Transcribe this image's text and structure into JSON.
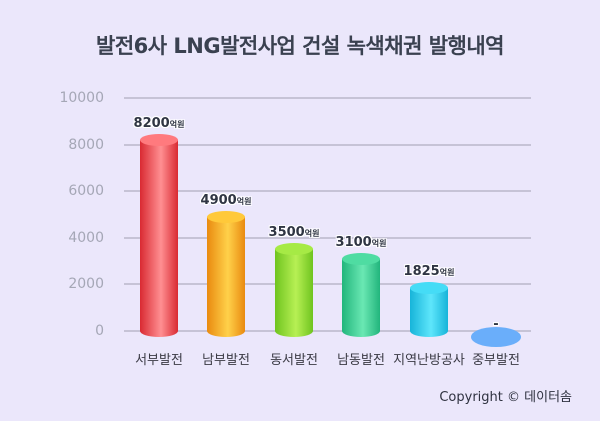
{
  "title": "발전6사 LNG발전사업 건설 녹색채권 발행내역",
  "copyright": "Copyright © 데이터솜",
  "unit_suffix": "억원",
  "y_ticks": [
    "10000",
    "8000",
    "6000",
    "4000",
    "2000",
    "0"
  ],
  "bars": [
    {
      "label": "서부발전",
      "value_text": "8200",
      "unit": "억원",
      "color_dark": "#d92a32",
      "color_light": "#ff8f92",
      "top": "#ff7a7e"
    },
    {
      "label": "남부발전",
      "value_text": "4900",
      "unit": "억원",
      "color_dark": "#e98a0f",
      "color_light": "#ffd14a",
      "top": "#ffc93a"
    },
    {
      "label": "동서발전",
      "value_text": "3500",
      "unit": "억원",
      "color_dark": "#6fc41f",
      "color_light": "#b7f054",
      "top": "#a6ea45"
    },
    {
      "label": "남동발전",
      "value_text": "3100",
      "unit": "억원",
      "color_dark": "#22b57c",
      "color_light": "#6ae8b3",
      "top": "#4fdca2"
    },
    {
      "label": "지역난방공사",
      "value_text": "1825",
      "unit": "억원",
      "color_dark": "#17b4d9",
      "color_light": "#5ee6fb",
      "top": "#45dcf6"
    },
    {
      "label": "중부발전",
      "value_text": "-",
      "unit": "",
      "color_dark": "#5aa4f5",
      "color_light": "#7ab8fb",
      "top": "#6aaefa"
    }
  ],
  "chart_data": {
    "type": "bar",
    "title": "발전6사 LNG발전사업 건설 녹색채권 발행내역",
    "categories": [
      "서부발전",
      "남부발전",
      "동서발전",
      "남동발전",
      "지역난방공사",
      "중부발전"
    ],
    "values": [
      8200,
      4900,
      3500,
      3100,
      1825,
      0
    ],
    "value_labels": [
      "8200억원",
      "4900억원",
      "3500억원",
      "3100억원",
      "1825억원",
      "-"
    ],
    "xlabel": "",
    "ylabel": "",
    "unit": "억원",
    "ylim": [
      0,
      10000
    ],
    "yticks": [
      0,
      2000,
      4000,
      6000,
      8000,
      10000
    ],
    "grid": true,
    "legend": null,
    "annotation": "Copyright © 데이터솜"
  }
}
